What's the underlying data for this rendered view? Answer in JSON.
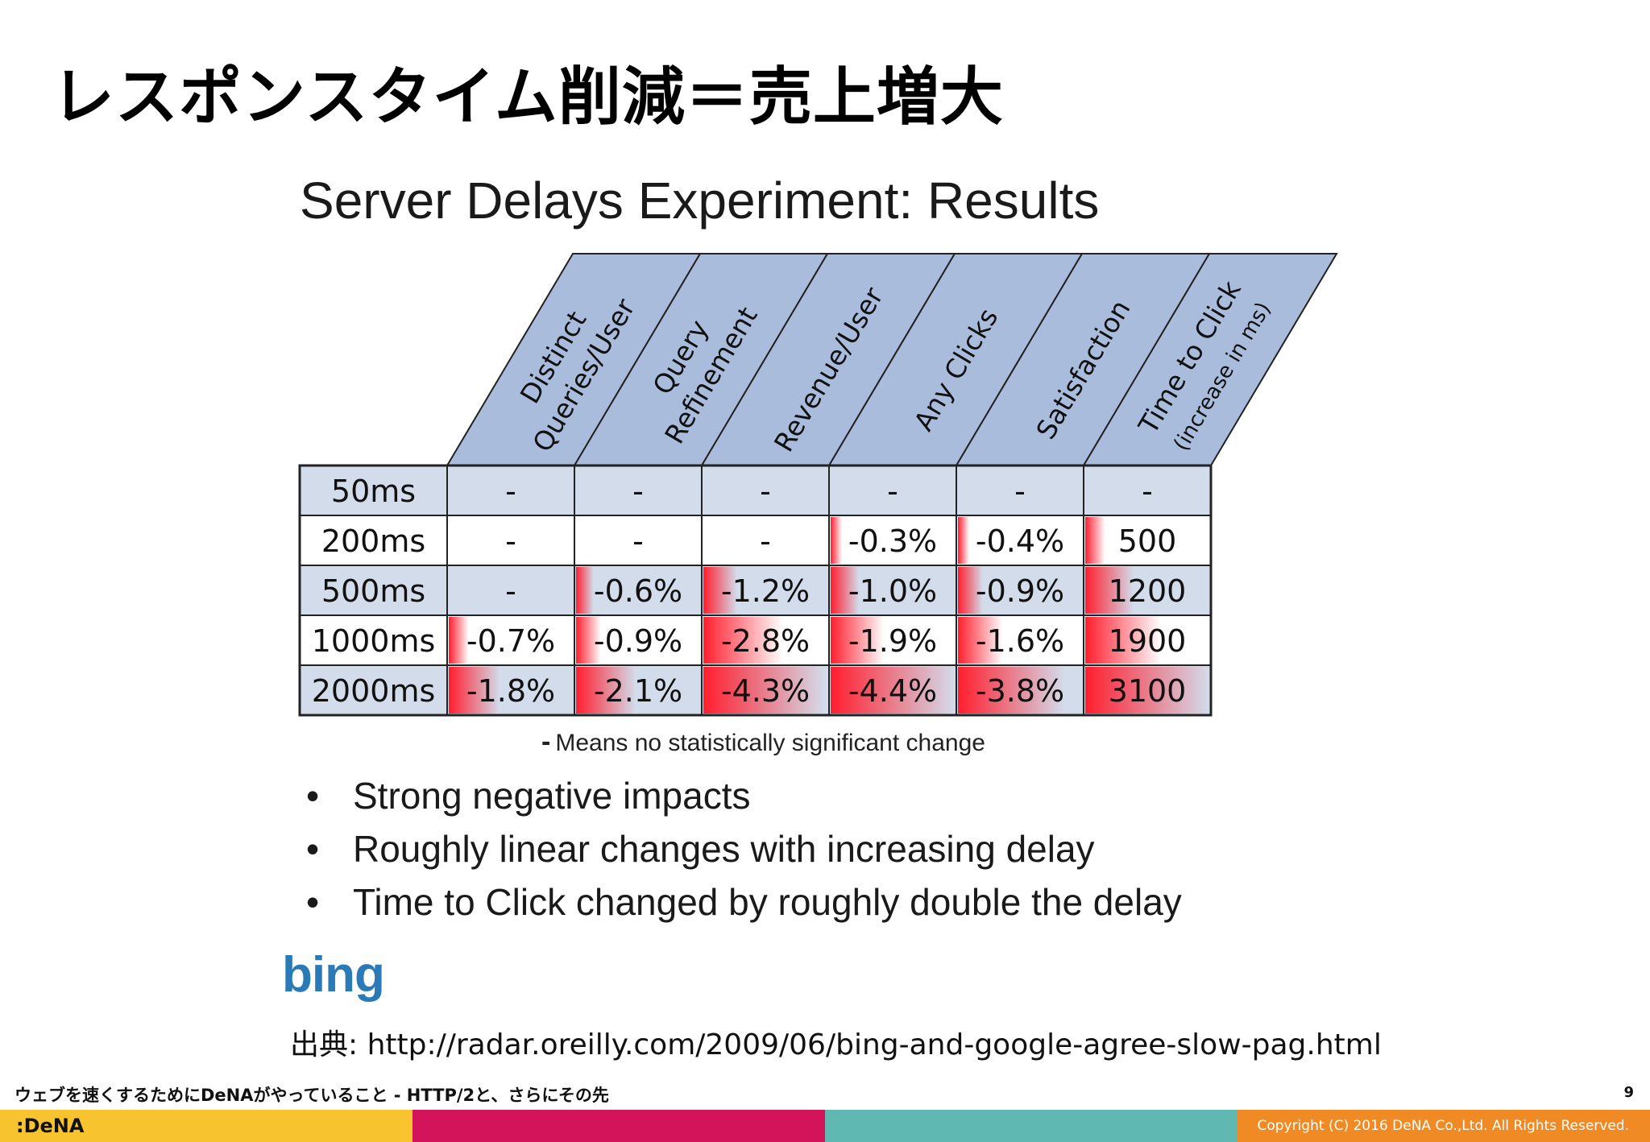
{
  "slide": {
    "title": "レスポンスタイム削減＝売上増大",
    "page_number": "9",
    "footer_text": "ウェブを速くするためにDeNAがやっていること - HTTP/2と、さらにその先",
    "copyright": "Copyright (C) 2016 DeNA Co.,Ltd. All Rights Reserved.",
    "logo_text": ":DeNA",
    "footer_colors": [
      "#f7c32e",
      "#d4145a",
      "#5fb8b2",
      "#f08a24"
    ]
  },
  "figure": {
    "title": "Server Delays Experiment: Results",
    "columns": [
      {
        "line1": "Distinct",
        "line2": "Queries/User"
      },
      {
        "line1": "Query",
        "line2": "Refinement"
      },
      {
        "line1": "Revenue/User",
        "line2": ""
      },
      {
        "line1": "Any Clicks",
        "line2": ""
      },
      {
        "line1": "Satisfaction",
        "line2": ""
      },
      {
        "line1": "Time to Click",
        "line2": "(increase in ms)"
      }
    ],
    "rows": [
      {
        "label": "50ms",
        "cells": [
          "-",
          "-",
          "-",
          "-",
          "-",
          "-"
        ],
        "shade": [
          0,
          0,
          0,
          0,
          0,
          0
        ]
      },
      {
        "label": "200ms",
        "cells": [
          "-",
          "-",
          "-",
          "-0.3%",
          "-0.4%",
          "500"
        ],
        "shade": [
          0,
          0,
          0,
          0.07,
          0.09,
          0.16
        ]
      },
      {
        "label": "500ms",
        "cells": [
          "-",
          "-0.6%",
          "-1.2%",
          "-1.0%",
          "-0.9%",
          "1200"
        ],
        "shade": [
          0,
          0.14,
          0.27,
          0.23,
          0.2,
          0.39
        ]
      },
      {
        "label": "1000ms",
        "cells": [
          "-0.7%",
          "-0.9%",
          "-2.8%",
          "-1.9%",
          "-1.6%",
          "1900"
        ],
        "shade": [
          0.16,
          0.2,
          0.64,
          0.43,
          0.36,
          0.61
        ]
      },
      {
        "label": "2000ms",
        "cells": [
          "-1.8%",
          "-2.1%",
          "-4.3%",
          "-4.4%",
          "-3.8%",
          "3100"
        ],
        "shade": [
          0.41,
          0.48,
          0.98,
          1.0,
          0.86,
          1.0
        ]
      }
    ],
    "footnote_dash": "-",
    "footnote": "Means no statistically significant change",
    "bullets": [
      "Strong negative impacts",
      "Roughly linear changes with increasing delay",
      "Time to Click changed by roughly double the delay"
    ],
    "bullet_symbol": "•",
    "logo": "bing",
    "colors": {
      "header_fill": "#a9bcdc",
      "band_fill": "#d3dceb",
      "heat": "#ff1e2e",
      "border": "#222222"
    }
  },
  "source": {
    "label": "出典",
    "url": ": http://radar.oreilly.com/2009/06/bing-and-google-agree-slow-pag.html"
  }
}
